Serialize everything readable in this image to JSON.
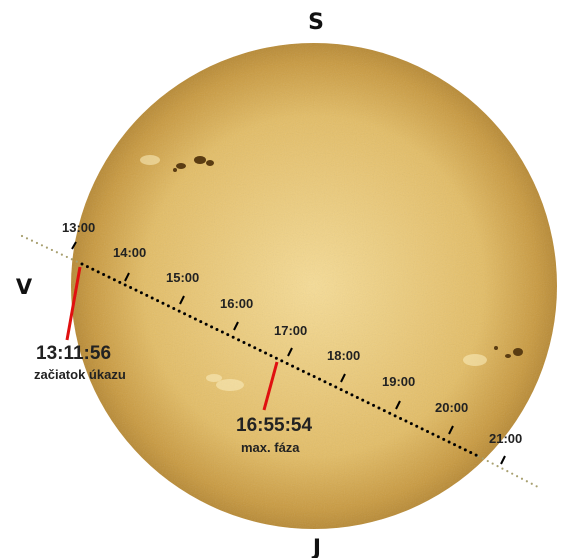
{
  "directions": {
    "north": "S",
    "south": "J",
    "east": "V"
  },
  "time_labels": [
    "13:00",
    "14:00",
    "15:00",
    "16:00",
    "17:00",
    "18:00",
    "19:00",
    "20:00",
    "21:00"
  ],
  "events": {
    "start": {
      "time": "13:11:56",
      "label": "začiatok úkazu"
    },
    "max": {
      "time": "16:55:54",
      "label": "max. fáza"
    }
  },
  "colors": {
    "sun_center": "#f6dc96",
    "sun_mid": "#e3bd66",
    "sun_edge": "#b88a35",
    "path": "#000000",
    "path_outside": "#a8a070",
    "marker": "#e01010"
  }
}
